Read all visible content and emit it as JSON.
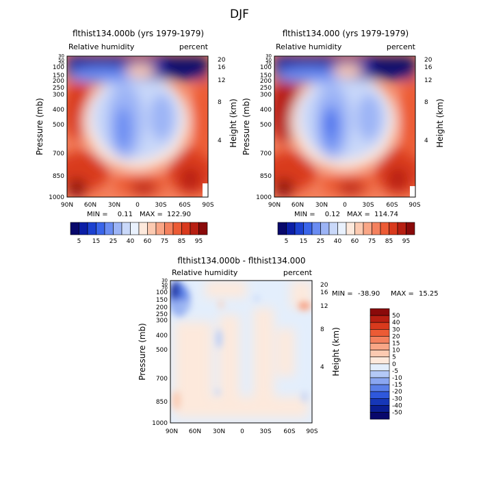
{
  "figure_title": "DJF",
  "chart_data": [
    {
      "type": "heatmap",
      "title": "flthist134.000b (yrs 1979-1979)",
      "left_label": "Relative humidity",
      "right_label": "percent",
      "ylabel": "Pressure (mb)",
      "ylabel_right": "Height (km)",
      "pressure_ticks": [
        "30",
        "50",
        "70",
        "100",
        "150",
        "200",
        "250",
        "300",
        "400",
        "500",
        "700",
        "850",
        "1000"
      ],
      "height_ticks": [
        "20",
        "16",
        "12",
        "8",
        "4"
      ],
      "lat_ticks": [
        "90N",
        "60N",
        "30N",
        "0",
        "30S",
        "60S",
        "90S"
      ],
      "min_label": "MIN = ",
      "min_value": "0.11",
      "max_label": "MAX = ",
      "max_value": "122.90",
      "min": 0.11,
      "max": 122.9,
      "colorbar": {
        "orientation": "horizontal",
        "labels": [
          "5",
          "15",
          "25",
          "40",
          "60",
          "75",
          "85",
          "95"
        ],
        "colors": [
          "#08086b",
          "#0b1ea6",
          "#1c41d0",
          "#3a65ea",
          "#6a8cf2",
          "#9cb4f6",
          "#c9d8f9",
          "#e9f1fd",
          "#fde9dc",
          "#fccab1",
          "#f9a686",
          "#f4815e",
          "#ec5b35",
          "#d93a1d",
          "#b71f12",
          "#8a0a0a"
        ]
      }
    },
    {
      "type": "heatmap",
      "title": "flthist134.000 (yrs 1979-1979)",
      "left_label": "Relative humidity",
      "right_label": "percent",
      "ylabel": "Pressure (mb)",
      "ylabel_right": "Height (km)",
      "pressure_ticks": [
        "30",
        "50",
        "70",
        "100",
        "150",
        "200",
        "250",
        "300",
        "400",
        "500",
        "700",
        "850",
        "1000"
      ],
      "height_ticks": [
        "20",
        "16",
        "12",
        "8",
        "4"
      ],
      "lat_ticks": [
        "90N",
        "60N",
        "30N",
        "0",
        "30S",
        "60S",
        "90S"
      ],
      "min_label": "MIN = ",
      "min_value": "0.12",
      "max_label": "MAX = ",
      "max_value": "114.74",
      "min": 0.12,
      "max": 114.74,
      "colorbar": {
        "orientation": "horizontal",
        "labels": [
          "5",
          "15",
          "25",
          "40",
          "60",
          "75",
          "85",
          "95"
        ],
        "colors": [
          "#08086b",
          "#0b1ea6",
          "#1c41d0",
          "#3a65ea",
          "#6a8cf2",
          "#9cb4f6",
          "#c9d8f9",
          "#e9f1fd",
          "#fde9dc",
          "#fccab1",
          "#f9a686",
          "#f4815e",
          "#ec5b35",
          "#d93a1d",
          "#b71f12",
          "#8a0a0a"
        ]
      }
    },
    {
      "type": "heatmap",
      "title": "flthist134.000b - flthist134.000",
      "left_label": "Relative humidity",
      "right_label": "percent",
      "ylabel": "Pressure (mb)",
      "ylabel_right": "Height (km)",
      "pressure_ticks": [
        "30",
        "50",
        "70",
        "100",
        "150",
        "200",
        "250",
        "300",
        "400",
        "500",
        "700",
        "850",
        "1000"
      ],
      "height_ticks": [
        "20",
        "16",
        "12",
        "8",
        "4"
      ],
      "lat_ticks": [
        "90N",
        "60N",
        "30N",
        "0",
        "30S",
        "60S",
        "90S"
      ],
      "min_label": "MIN = ",
      "min_value": "-38.90",
      "max_label": "MAX = ",
      "max_value": "15.25",
      "min": -38.9,
      "max": 15.25,
      "colorbar": {
        "orientation": "vertical",
        "labels": [
          "50",
          "40",
          "30",
          "20",
          "15",
          "10",
          "5",
          "0",
          "-5",
          "-10",
          "-15",
          "-20",
          "-30",
          "-40",
          "-50"
        ],
        "colors": [
          "#8a0a0a",
          "#b71f12",
          "#d93a1d",
          "#ec5b35",
          "#f4815e",
          "#f9a686",
          "#fccab1",
          "#fde9dc",
          "#e3eefc",
          "#b4c9f7",
          "#8aa6f1",
          "#5a7fe8",
          "#2f58dc",
          "#1637b8",
          "#0a1e93",
          "#08086b"
        ]
      }
    }
  ]
}
